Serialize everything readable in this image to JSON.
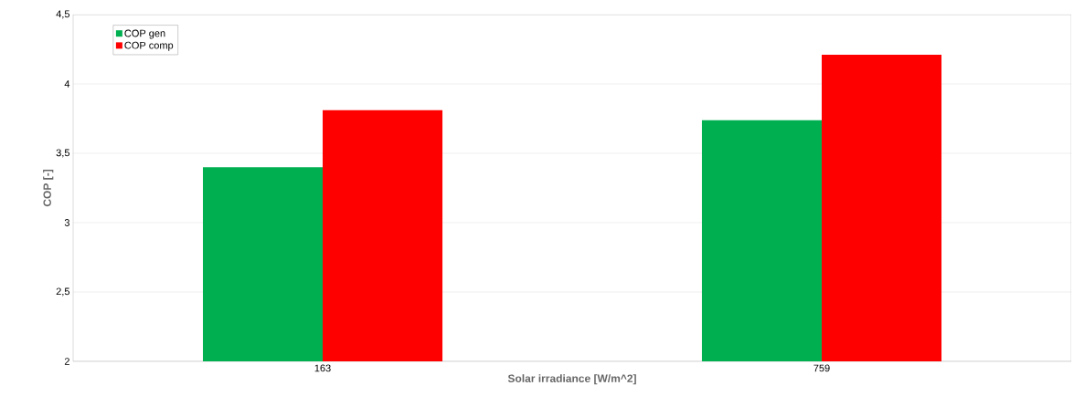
{
  "chart_data": {
    "type": "bar",
    "xlabel": "Solar irradiance [W/m^2]",
    "ylabel": "COP [-]",
    "categories": [
      "163",
      "759"
    ],
    "series": [
      {
        "name": "COP gen",
        "color": "#00b050",
        "values": [
          3.4,
          3.74
        ]
      },
      {
        "name": "COP comp",
        "color": "#ff0000",
        "values": [
          3.81,
          4.21
        ]
      }
    ],
    "ylim": [
      2,
      4.5
    ],
    "yticks": [
      2,
      {
        "value": 2.5,
        "label": "2,5"
      },
      3,
      {
        "value": 3.5,
        "label": "3,5"
      },
      4,
      {
        "value": 4.5,
        "label": "4,5"
      }
    ],
    "grid": "y",
    "legend": "top left"
  }
}
